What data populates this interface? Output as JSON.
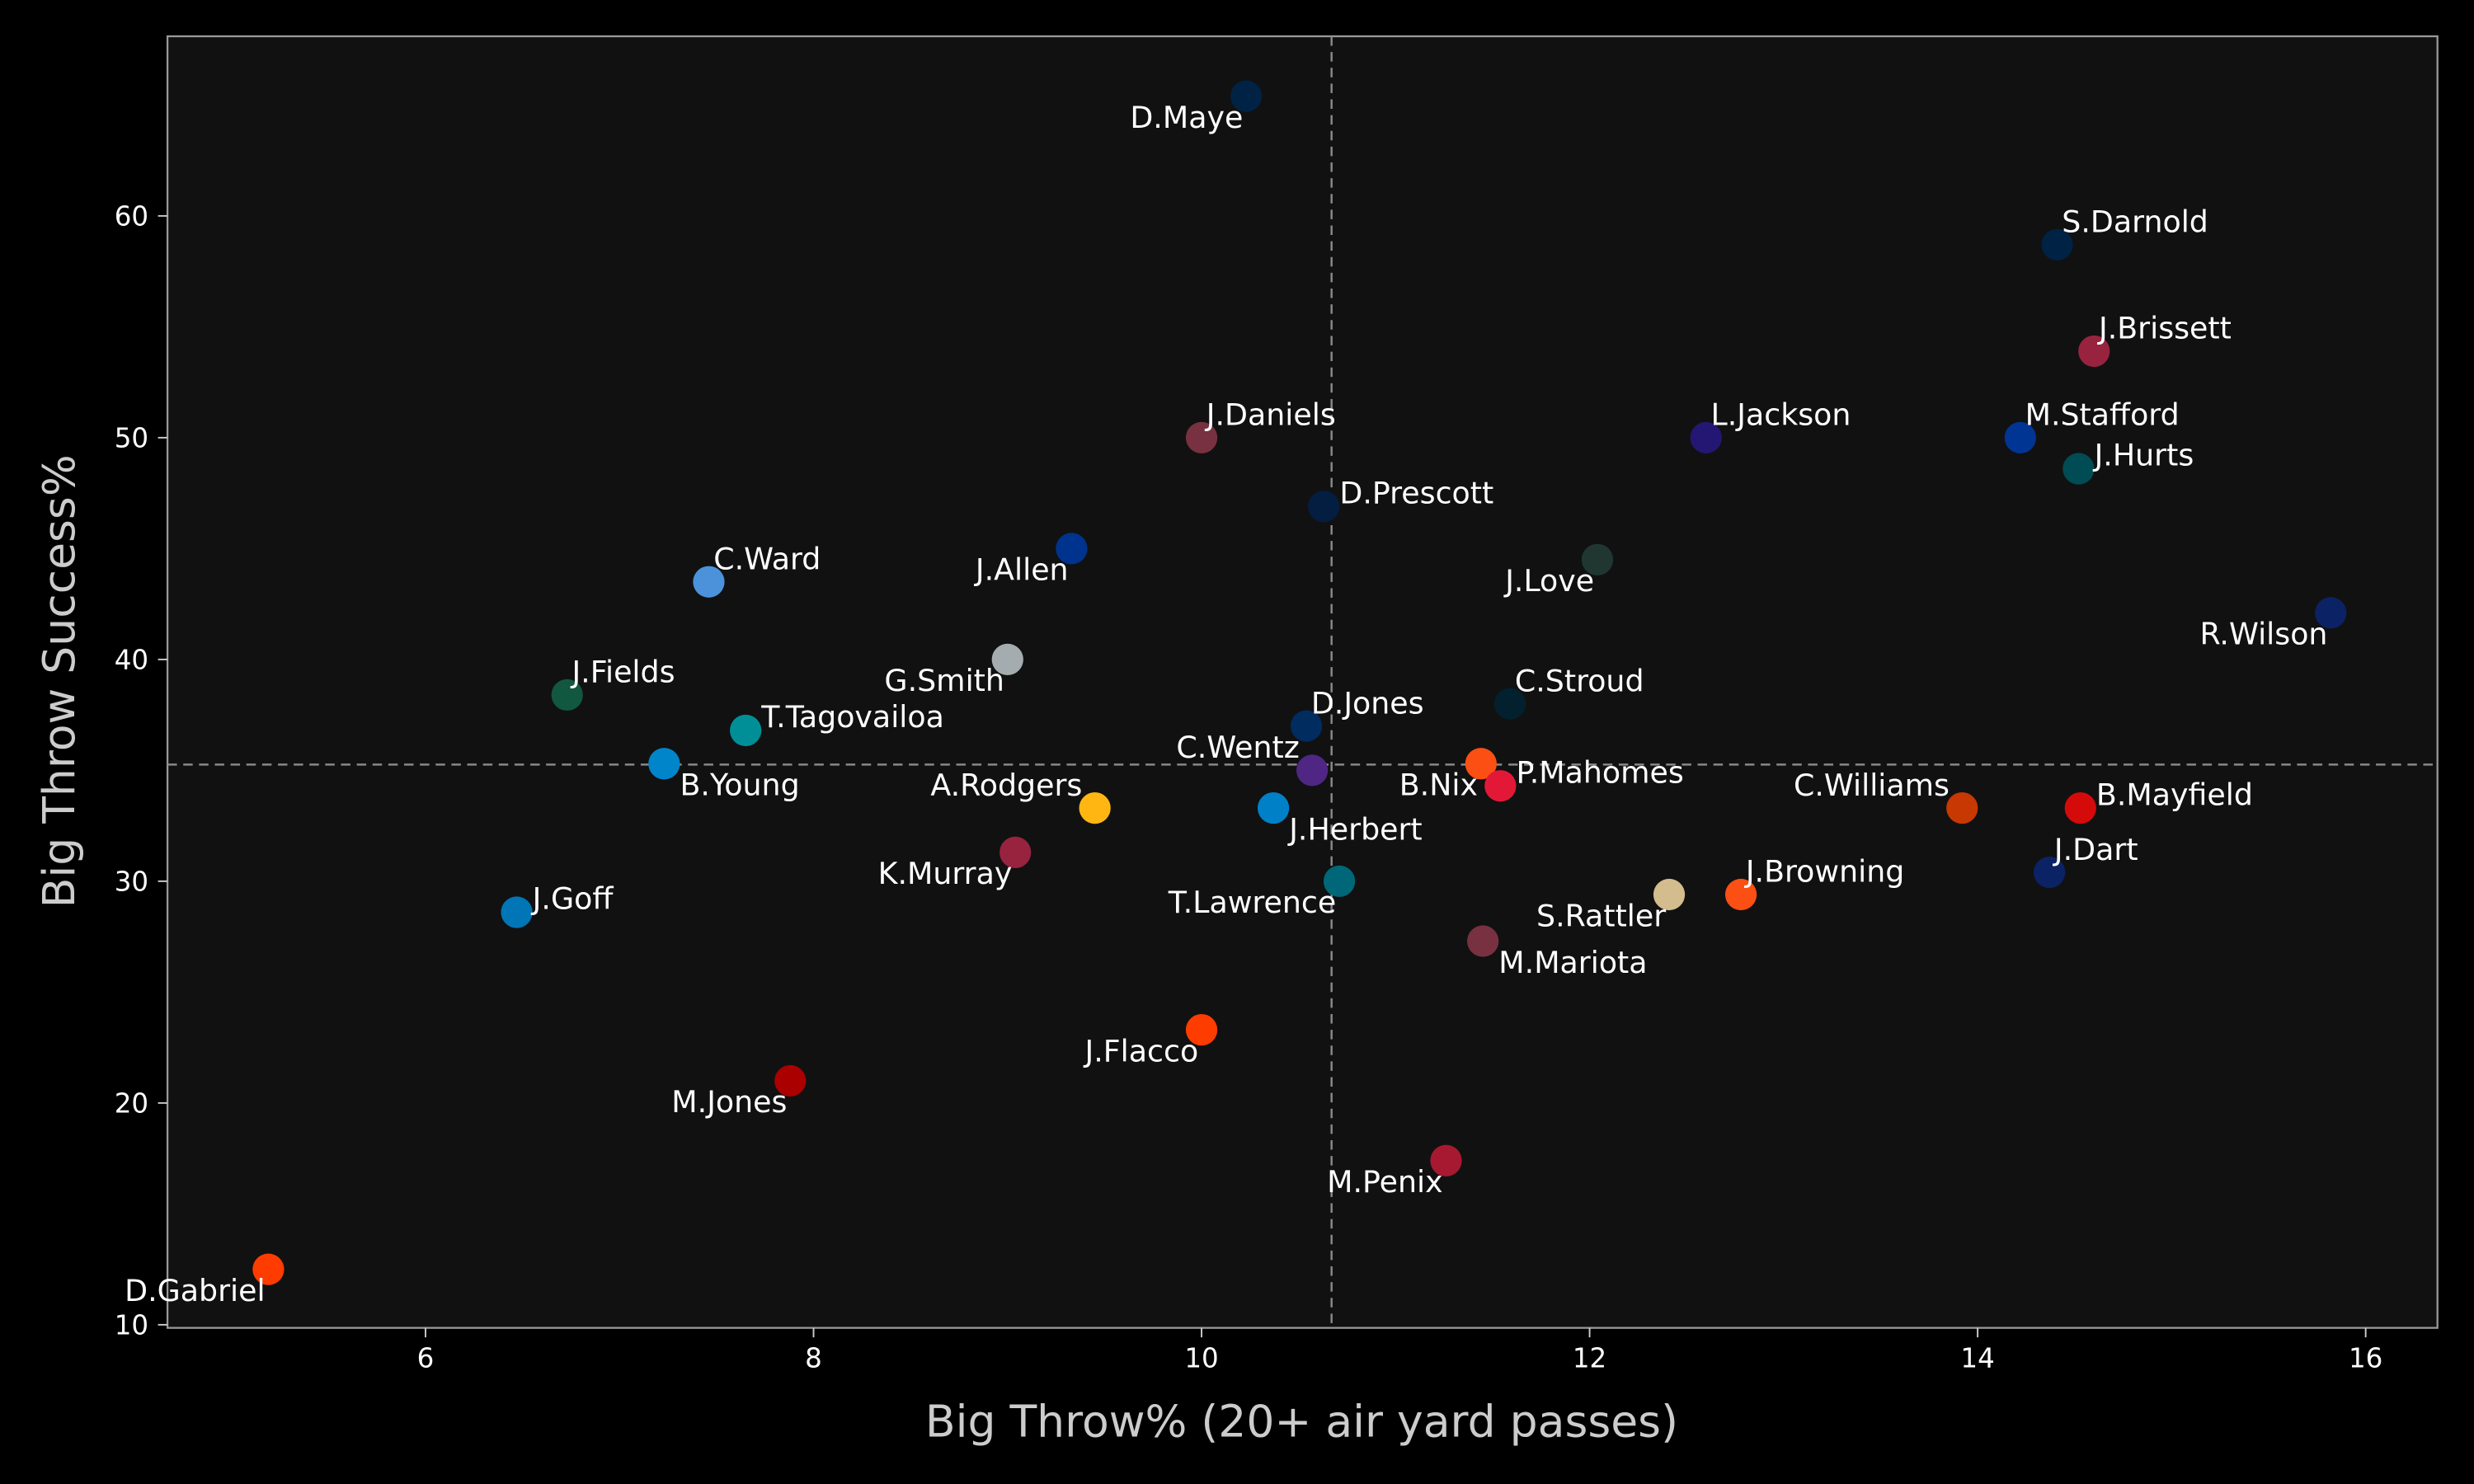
{
  "chart_data": {
    "type": "scatter",
    "title": "",
    "xlabel": "Big Throw% (20+ air yard passes)",
    "ylabel": "Big Throw Success%",
    "xlim": [
      4.67,
      16.37
    ],
    "ylim": [
      9.86,
      68.1
    ],
    "xticks": [
      6,
      8,
      10,
      12,
      14,
      16
    ],
    "yticks": [
      10,
      20,
      30,
      40,
      50,
      60
    ],
    "grid": false,
    "reference_lines": {
      "x_mean": 10.67,
      "y_mean": 35.26
    },
    "background": "#111111",
    "points": [
      {
        "name": "D.Maye",
        "x": 10.23,
        "y": 65.4,
        "color": "#002244",
        "label": "below-left"
      },
      {
        "name": "S.Darnold",
        "x": 14.41,
        "y": 58.7,
        "color": "#002244",
        "label": "above-right"
      },
      {
        "name": "J.Brissett",
        "x": 14.6,
        "y": 53.9,
        "color": "#97233F",
        "label": "above-right"
      },
      {
        "name": "J.Daniels",
        "x": 10.0,
        "y": 50.0,
        "color": "#773141",
        "label": "above-right"
      },
      {
        "name": "L.Jackson",
        "x": 12.6,
        "y": 50.0,
        "color": "#241773",
        "label": "above-right"
      },
      {
        "name": "M.Stafford",
        "x": 14.22,
        "y": 50.0,
        "color": "#003594",
        "label": "above-right"
      },
      {
        "name": "J.Hurts",
        "x": 14.52,
        "y": 48.6,
        "color": "#004C54",
        "label": "right"
      },
      {
        "name": "D.Prescott",
        "x": 10.63,
        "y": 46.9,
        "color": "#041E42",
        "label": "right"
      },
      {
        "name": "J.Love",
        "x": 12.04,
        "y": 44.5,
        "color": "#203731",
        "label": "below-left"
      },
      {
        "name": "J.Allen",
        "x": 9.33,
        "y": 45.0,
        "color": "#00338D",
        "label": "below-left"
      },
      {
        "name": "C.Ward",
        "x": 7.46,
        "y": 43.5,
        "color": "#4B92DB",
        "label": "above-right"
      },
      {
        "name": "R.Wilson",
        "x": 15.82,
        "y": 42.1,
        "color": "#0B2265",
        "label": "below-left"
      },
      {
        "name": "G.Smith",
        "x": 9.0,
        "y": 40.0,
        "color": "#A5ACAF",
        "label": "below-left"
      },
      {
        "name": "J.Fields",
        "x": 6.73,
        "y": 38.4,
        "color": "#125740",
        "label": "above-right"
      },
      {
        "name": "C.Stroud",
        "x": 11.59,
        "y": 38.0,
        "color": "#03202F",
        "label": "above-right"
      },
      {
        "name": "D.Jones",
        "x": 10.54,
        "y": 37.0,
        "color": "#002C5F",
        "label": "above-right"
      },
      {
        "name": "T.Tagovailoa",
        "x": 7.65,
        "y": 36.8,
        "color": "#008E97",
        "label": "right"
      },
      {
        "name": "B.Young",
        "x": 7.23,
        "y": 35.3,
        "color": "#0085CA",
        "label": "below-right"
      },
      {
        "name": "C.Wentz",
        "x": 10.57,
        "y": 35.0,
        "color": "#4F2683",
        "label": "above-left"
      },
      {
        "name": "B.Nix",
        "x": 11.44,
        "y": 35.3,
        "color": "#FB4F14",
        "label": "below-left"
      },
      {
        "name": "P.Mahomes",
        "x": 11.54,
        "y": 34.3,
        "color": "#E31837",
        "label": "right"
      },
      {
        "name": "A.Rodgers",
        "x": 9.45,
        "y": 33.3,
        "color": "#FFB612",
        "label": "above-left"
      },
      {
        "name": "J.Herbert",
        "x": 10.37,
        "y": 33.3,
        "color": "#0080C6",
        "label": "below-right"
      },
      {
        "name": "C.Williams",
        "x": 13.92,
        "y": 33.3,
        "color": "#C83803",
        "label": "above-left"
      },
      {
        "name": "B.Mayfield",
        "x": 14.53,
        "y": 33.3,
        "color": "#D50A0A",
        "label": "right"
      },
      {
        "name": "K.Murray",
        "x": 9.04,
        "y": 31.3,
        "color": "#97233F",
        "label": "below-left"
      },
      {
        "name": "J.Dart",
        "x": 14.37,
        "y": 30.4,
        "color": "#0B2265",
        "label": "above-right"
      },
      {
        "name": "T.Lawrence",
        "x": 10.71,
        "y": 30.0,
        "color": "#006778",
        "label": "below-left"
      },
      {
        "name": "S.Rattler",
        "x": 12.41,
        "y": 29.4,
        "color": "#D3BC8D",
        "label": "below-left"
      },
      {
        "name": "J.Browning",
        "x": 12.78,
        "y": 29.4,
        "color": "#FB4F14",
        "label": "above-right"
      },
      {
        "name": "J.Goff",
        "x": 6.47,
        "y": 28.6,
        "color": "#0076B6",
        "label": "right"
      },
      {
        "name": "M.Mariota",
        "x": 11.45,
        "y": 27.3,
        "color": "#773141",
        "label": "below-right"
      },
      {
        "name": "J.Flacco",
        "x": 10.0,
        "y": 23.3,
        "color": "#FF3C00",
        "label": "below-left"
      },
      {
        "name": "M.Jones",
        "x": 7.88,
        "y": 21.0,
        "color": "#AA0000",
        "label": "below-left"
      },
      {
        "name": "M.Penix",
        "x": 11.26,
        "y": 17.4,
        "color": "#A71930",
        "label": "below-left"
      },
      {
        "name": "D.Gabriel",
        "x": 5.19,
        "y": 12.5,
        "color": "#FF3C00",
        "label": "below-left"
      }
    ]
  }
}
